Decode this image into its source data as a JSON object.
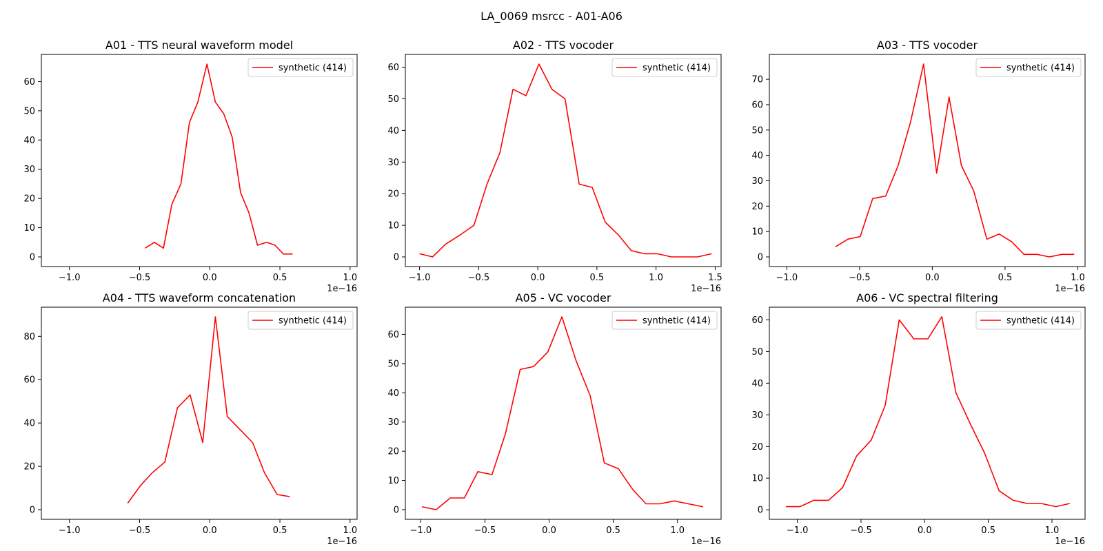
{
  "figure_title": "LA_0069 msrcc - A01-A06",
  "colors": {
    "line": "#ff0000",
    "axes": "#000000",
    "background": "#ffffff"
  },
  "chart_data": [
    {
      "type": "line",
      "title": "A01 - TTS neural waveform model",
      "xlim": [
        -1.2,
        1.05
      ],
      "ylim": [
        -3.3,
        69.3
      ],
      "x_multiplier_label": "1e−16",
      "xticks": [
        -1.0,
        -0.5,
        0.0,
        0.5,
        1.0
      ],
      "xtick_labels": [
        "−1.0",
        "−0.5",
        "0.0",
        "0.5",
        "1.0"
      ],
      "yticks": [
        0,
        10,
        20,
        30,
        40,
        50,
        60
      ],
      "ytick_labels": [
        "0",
        "10",
        "20",
        "30",
        "40",
        "50",
        "60"
      ],
      "legend_position": "upper-right",
      "series": [
        {
          "name": "synthetic (414)",
          "color": "#ff0000",
          "x": [
            -0.46,
            -0.395,
            -0.33,
            -0.27,
            -0.205,
            -0.145,
            -0.085,
            -0.02,
            0.04,
            0.1,
            0.16,
            0.22,
            0.28,
            0.34,
            0.405,
            0.465,
            0.525,
            0.59
          ],
          "y": [
            3,
            5,
            3,
            18,
            25,
            46,
            53,
            66,
            53,
            49,
            41,
            22,
            15,
            4,
            5,
            4,
            1,
            1
          ]
        }
      ]
    },
    {
      "type": "line",
      "title": "A02 - TTS vocoder",
      "xlim": [
        -1.12,
        1.55
      ],
      "ylim": [
        -3.05,
        64.05
      ],
      "x_multiplier_label": "1e−16",
      "xticks": [
        -1.0,
        -0.5,
        0.0,
        0.5,
        1.0,
        1.5
      ],
      "xtick_labels": [
        "−1.0",
        "−0.5",
        "0.0",
        "0.5",
        "1.0",
        "1.5"
      ],
      "yticks": [
        0,
        10,
        20,
        30,
        40,
        50,
        60
      ],
      "ytick_labels": [
        "0",
        "10",
        "20",
        "30",
        "40",
        "50",
        "60"
      ],
      "legend_position": "upper-right",
      "series": [
        {
          "name": "synthetic (414)",
          "color": "#ff0000",
          "x": [
            -1.0,
            -0.89,
            -0.78,
            -0.655,
            -0.54,
            -0.43,
            -0.32,
            -0.21,
            -0.1,
            0.01,
            0.12,
            0.23,
            0.35,
            0.46,
            0.57,
            0.68,
            0.79,
            0.9,
            1.01,
            1.13,
            1.24,
            1.35,
            1.47
          ],
          "y": [
            1,
            0,
            4,
            7,
            10,
            23,
            33,
            53,
            51,
            61,
            53,
            50,
            23,
            22,
            11,
            7,
            2,
            1,
            1,
            0,
            0,
            0,
            1
          ]
        }
      ]
    },
    {
      "type": "line",
      "title": "A03 - TTS vocoder",
      "xlim": [
        -1.12,
        1.05
      ],
      "ylim": [
        -3.8,
        79.8
      ],
      "x_multiplier_label": "1e−16",
      "xticks": [
        -1.0,
        -0.5,
        0.0,
        0.5,
        1.0
      ],
      "xtick_labels": [
        "−1.0",
        "−0.5",
        "0.0",
        "0.5",
        "1.0"
      ],
      "yticks": [
        0,
        10,
        20,
        30,
        40,
        50,
        60,
        70
      ],
      "ytick_labels": [
        "0",
        "10",
        "20",
        "30",
        "40",
        "50",
        "60",
        "70"
      ],
      "legend_position": "upper-right",
      "series": [
        {
          "name": "synthetic (414)",
          "color": "#ff0000",
          "x": [
            -0.665,
            -0.58,
            -0.495,
            -0.41,
            -0.32,
            -0.235,
            -0.15,
            -0.06,
            0.03,
            0.115,
            0.2,
            0.285,
            0.375,
            0.46,
            0.545,
            0.63,
            0.72,
            0.805,
            0.89,
            0.975
          ],
          "y": [
            4,
            7,
            8,
            23,
            24,
            36,
            53,
            76,
            33,
            63,
            36,
            26,
            7,
            9,
            6,
            1,
            1,
            0,
            1,
            1
          ]
        }
      ]
    },
    {
      "type": "line",
      "title": "A04 - TTS waveform concatenation",
      "xlim": [
        -1.2,
        1.05
      ],
      "ylim": [
        -4.45,
        93.45
      ],
      "x_multiplier_label": "1e−16",
      "xticks": [
        -1.0,
        -0.5,
        0.0,
        0.5,
        1.0
      ],
      "xtick_labels": [
        "−1.0",
        "−0.5",
        "0.0",
        "0.5",
        "1.0"
      ],
      "yticks": [
        0,
        20,
        40,
        60,
        80
      ],
      "ytick_labels": [
        "0",
        "20",
        "40",
        "60",
        "80"
      ],
      "legend_position": "upper-right",
      "series": [
        {
          "name": "synthetic (414)",
          "color": "#ff0000",
          "x": [
            -0.585,
            -0.495,
            -0.41,
            -0.32,
            -0.23,
            -0.14,
            -0.05,
            0.04,
            0.125,
            0.215,
            0.305,
            0.39,
            0.48,
            0.57
          ],
          "y": [
            3,
            11,
            17,
            22,
            47,
            53,
            31,
            89,
            43,
            37,
            31,
            17,
            7,
            6
          ]
        }
      ]
    },
    {
      "type": "line",
      "title": "A05 - VC vocoder",
      "xlim": [
        -1.12,
        1.34
      ],
      "ylim": [
        -3.3,
        69.3
      ],
      "x_multiplier_label": "1e−16",
      "xticks": [
        -1.0,
        -0.5,
        0.0,
        0.5,
        1.0
      ],
      "xtick_labels": [
        "−1.0",
        "−0.5",
        "0.0",
        "0.5",
        "1.0"
      ],
      "yticks": [
        0,
        10,
        20,
        30,
        40,
        50,
        60
      ],
      "ytick_labels": [
        "0",
        "10",
        "20",
        "30",
        "40",
        "50",
        "60"
      ],
      "legend_position": "upper-right",
      "series": [
        {
          "name": "synthetic (414)",
          "color": "#ff0000",
          "x": [
            -0.99,
            -0.88,
            -0.77,
            -0.66,
            -0.555,
            -0.445,
            -0.34,
            -0.225,
            -0.12,
            -0.01,
            0.1,
            0.21,
            0.32,
            0.43,
            0.54,
            0.65,
            0.755,
            0.865,
            0.975,
            1.085,
            1.2
          ],
          "y": [
            1,
            0,
            4,
            4,
            13,
            12,
            26,
            48,
            49,
            54,
            66,
            51,
            39,
            16,
            14,
            7,
            2,
            2,
            3,
            2,
            1
          ]
        }
      ]
    },
    {
      "type": "line",
      "title": "A06 - VC spectral filtering",
      "xlim": [
        -1.22,
        1.26
      ],
      "ylim": [
        -3.0,
        64.0
      ],
      "x_multiplier_label": "1e−16",
      "xticks": [
        -1.0,
        -0.5,
        0.0,
        0.5,
        1.0
      ],
      "xtick_labels": [
        "−1.0",
        "−0.5",
        "0.0",
        "0.5",
        "1.0"
      ],
      "yticks": [
        0,
        10,
        20,
        30,
        40,
        50,
        60
      ],
      "ytick_labels": [
        "0",
        "10",
        "20",
        "30",
        "40",
        "50",
        "60"
      ],
      "legend_position": "upper-right",
      "series": [
        {
          "name": "synthetic (414)",
          "color": "#ff0000",
          "x": [
            -1.09,
            -0.98,
            -0.87,
            -0.755,
            -0.645,
            -0.535,
            -0.42,
            -0.31,
            -0.2,
            -0.085,
            0.025,
            0.135,
            0.245,
            0.36,
            0.47,
            0.585,
            0.695,
            0.805,
            0.915,
            1.03,
            1.14
          ],
          "y": [
            1,
            1,
            3,
            3,
            7,
            17,
            22,
            33,
            60,
            54,
            54,
            61,
            37,
            27,
            18,
            6,
            3,
            2,
            2,
            1,
            2
          ]
        }
      ]
    }
  ]
}
